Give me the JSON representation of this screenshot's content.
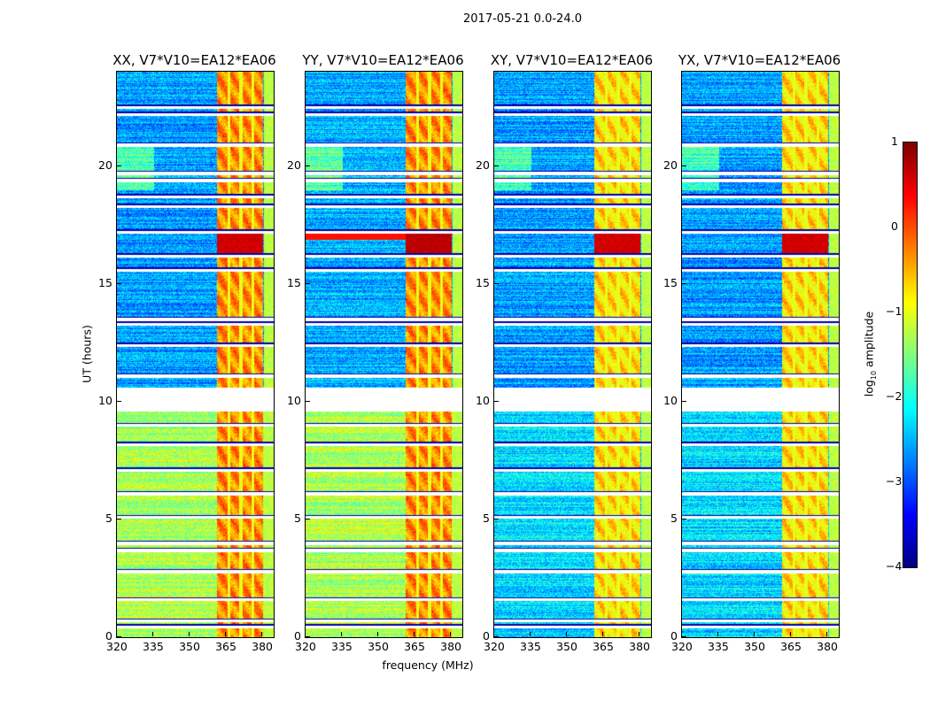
{
  "figure": {
    "title": "2017-05-21 0.0-24.0",
    "xlabel": "frequency (MHz)",
    "ylabel": "UT (hours)"
  },
  "colorbar": {
    "label_prefix": "log",
    "label_sub": "10",
    "label_suffix": " amplitude",
    "ticks": [
      "1",
      "0",
      "−1",
      "−2",
      "−3",
      "−4"
    ],
    "range": [
      -4,
      1
    ],
    "colormap": "jet"
  },
  "chart_data": [
    {
      "type": "heatmap",
      "title": "XX, V7*V10=EA12*EA06",
      "base_low": -1.3,
      "base_high": -2.6,
      "band_level": -0.3,
      "flare_level": 0.6
    },
    {
      "type": "heatmap",
      "title": "YY, V7*V10=EA12*EA06",
      "base_low": -1.3,
      "base_high": -2.5,
      "band_level": -0.3,
      "flare_level": 0.7
    },
    {
      "type": "heatmap",
      "title": "XY, V7*V10=EA12*EA06",
      "base_low": -2.3,
      "base_high": -2.6,
      "band_level": -0.7,
      "flare_level": 0.6
    },
    {
      "type": "heatmap",
      "title": "YX, V7*V10=EA12*EA06",
      "base_low": -2.3,
      "base_high": -2.6,
      "band_level": -0.7,
      "flare_level": 0.6
    }
  ],
  "axes": {
    "xlim": [
      320,
      384.7
    ],
    "ylim": [
      0,
      24
    ],
    "xticks": [
      "320",
      "335",
      "350",
      "365",
      "380"
    ],
    "xtick_values": [
      320,
      335,
      350,
      365,
      380
    ],
    "yticks": [
      "0",
      "5",
      "10",
      "15",
      "20"
    ],
    "ytick_values": [
      0,
      5,
      10,
      15,
      20
    ],
    "band_freq": [
      361,
      380
    ],
    "band_dark_channels": [
      366,
      371,
      376
    ],
    "data_gap_hours": [
      9.6,
      10.6
    ],
    "flare_hours": [
      16.3,
      17.2
    ],
    "flagged_rows_hours": [
      0.45,
      0.7,
      1.6,
      2.8,
      3.7,
      4.0,
      5.1,
      6.1,
      7.1,
      8.2,
      9.0,
      11.1,
      12.4,
      13.3,
      13.5,
      15.6,
      16.2,
      17.2,
      18.3,
      18.7,
      19.4,
      19.7,
      20.9,
      22.2,
      22.5
    ]
  }
}
